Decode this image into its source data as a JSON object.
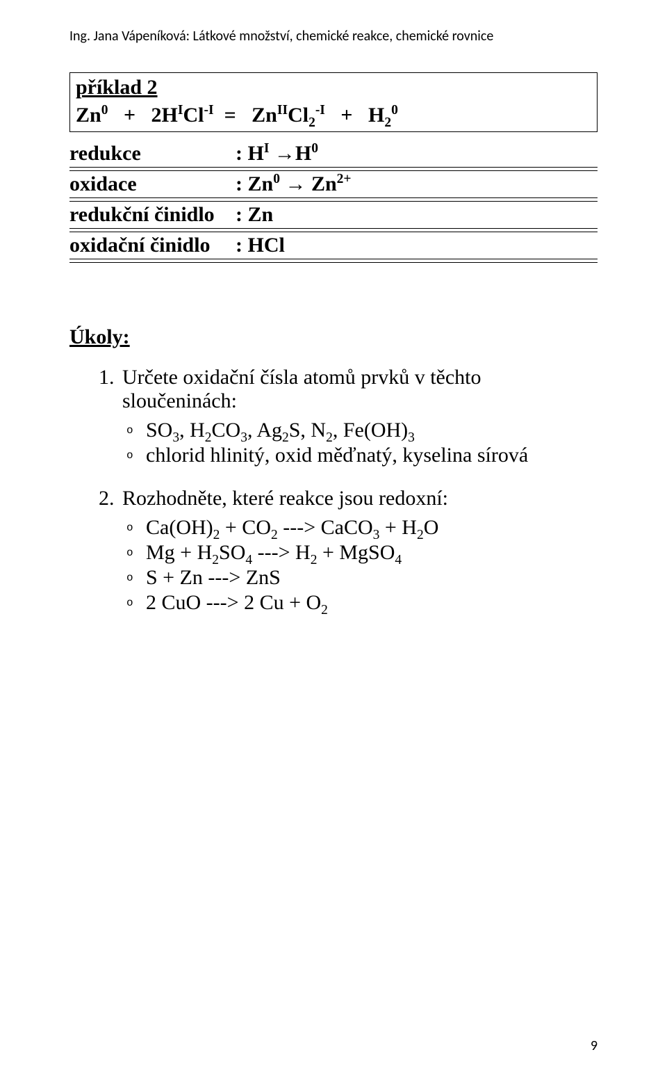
{
  "header": "Ing. Jana Vápeníková: Látkové množství, chemické reakce, chemické rovnice",
  "example": {
    "title": "příklad 2",
    "equation_html": "Zn<sup>0</sup>&nbsp;&nbsp;&nbsp;+&nbsp;&nbsp;&nbsp;2H<sup>I</sup>Cl<sup>-I</sup>&nbsp;&nbsp;=&nbsp;&nbsp;&nbsp;Zn<sup>II</sup>Cl<sub>2</sub><sup>-I</sup>&nbsp;&nbsp;&nbsp;+&nbsp;&nbsp;&nbsp;H<sub>2</sub><sup>0</sup>"
  },
  "rows": [
    {
      "label": "redukce",
      "value_html": ": H<sup>I</sup> <span class=\"arrow\">→</span>H<sup>0</sup>"
    },
    {
      "label": "oxidace",
      "value_html": ": Zn<sup>0</sup> <span class=\"arrow\">→</span> Zn<sup>2+</sup>"
    },
    {
      "label": "redukční činidlo",
      "value_html": ": Zn"
    },
    {
      "label": "oxidační činidlo",
      "value_html": ": HCl"
    }
  ],
  "tasks_title": "Úkoly:",
  "tasks": [
    {
      "text": "Určete oxidační čísla atomů prvků v těchto sloučeninách:",
      "sub_html": [
        "SO<sub>3</sub>, H<sub>2</sub>CO<sub>3</sub>, Ag<sub>2</sub>S, N<sub>2</sub>, Fe(OH)<sub>3</sub>",
        "chlorid hlinitý, oxid měďnatý, kyselina sírová"
      ]
    },
    {
      "text": "Rozhodněte, které reakce jsou redoxní:",
      "sub_html": [
        "Ca(OH)<sub>2</sub> + CO<sub>2</sub> ---&gt; CaCO<sub>3</sub> + H<sub>2</sub>O",
        "Mg + H<sub>2</sub>SO<sub>4</sub> ---&gt; H<sub>2</sub> + MgSO<sub>4</sub>",
        "S + Zn ---&gt; ZnS",
        "2 CuO ---&gt; 2 Cu + O<sub>2</sub>"
      ]
    }
  ],
  "page_number": "9"
}
